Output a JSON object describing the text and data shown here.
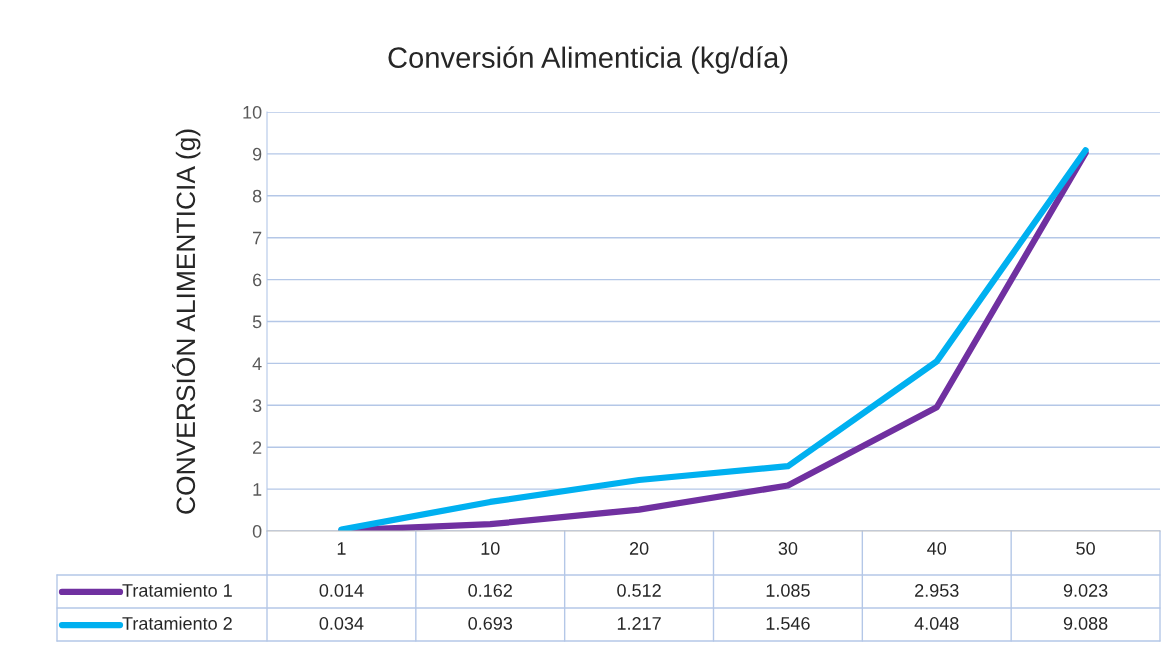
{
  "chart_data": {
    "type": "line",
    "title": "Conversión Alimenticia (kg/día)",
    "ylabel": "CONVERSIÓN ALIMENTICIA (g)",
    "categories": [
      "1",
      "10",
      "20",
      "30",
      "40",
      "50"
    ],
    "series": [
      {
        "name": "Tratamiento 1",
        "color": "#7030a0",
        "values": [
          0.014,
          0.162,
          0.512,
          1.085,
          2.953,
          9.023
        ]
      },
      {
        "name": "Tratamiento 2",
        "color": "#00b0f0",
        "values": [
          0.034,
          0.693,
          1.217,
          1.546,
          4.048,
          9.088
        ]
      }
    ],
    "ylim": [
      0,
      10
    ],
    "yticks": [
      0,
      1,
      2,
      3,
      4,
      5,
      6,
      7,
      8,
      9,
      10
    ],
    "grid": "y",
    "legend": "bottom",
    "data_labels": true,
    "line_style": "solid",
    "marker": "none"
  }
}
